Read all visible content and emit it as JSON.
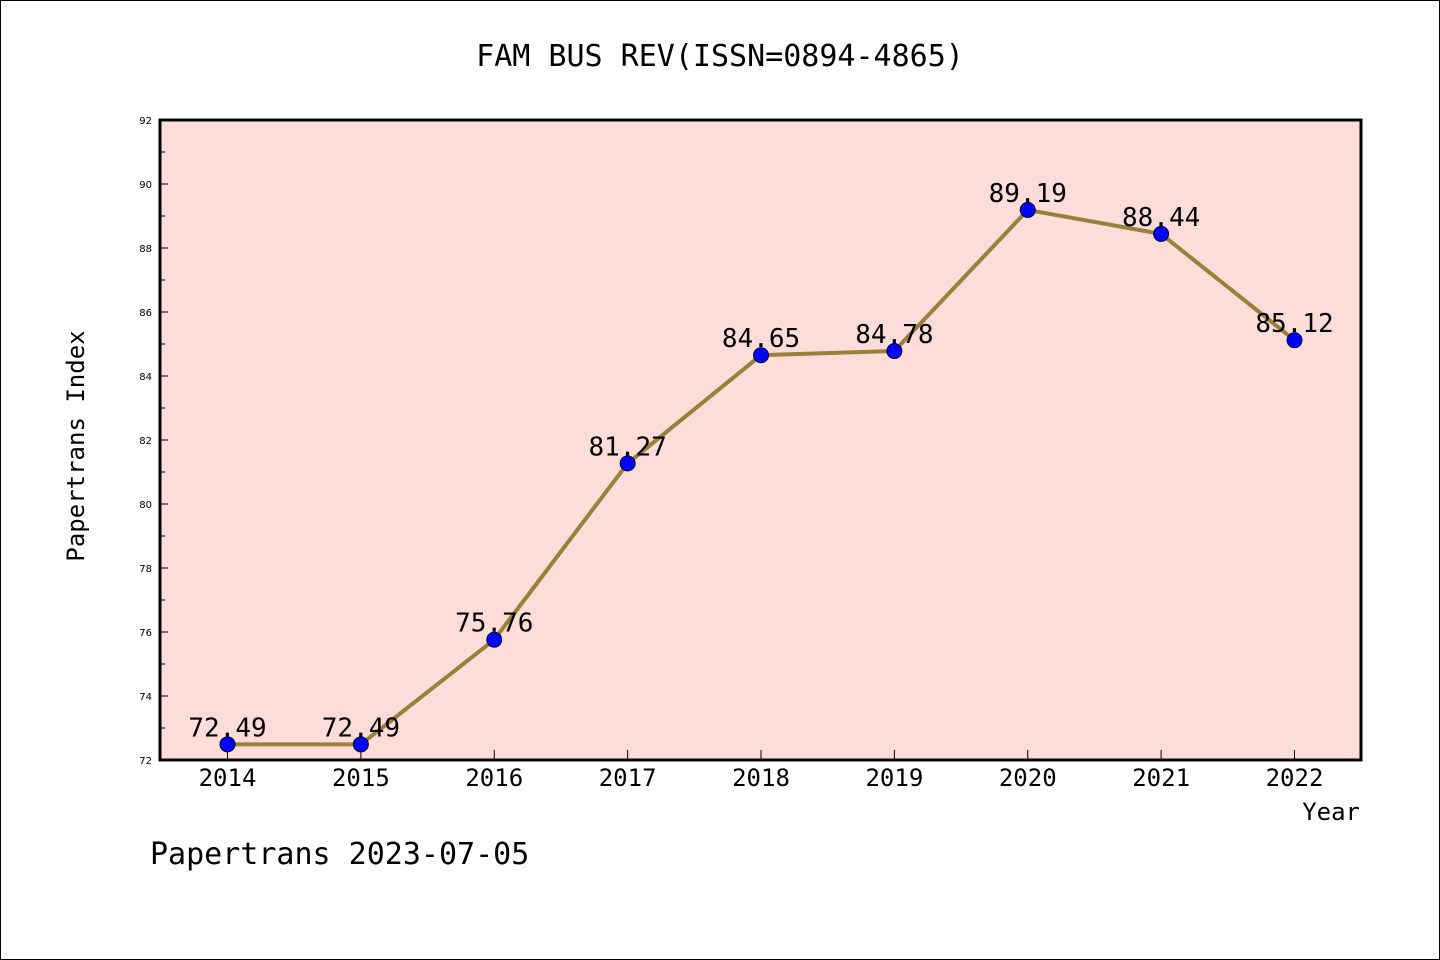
{
  "colors": {
    "plot_background": "#fddcd9",
    "line": "#9a8039",
    "marker": "#0000ff",
    "axis": "#000000"
  },
  "footer": "Papertrans 2023-07-05",
  "chart_data": {
    "type": "line",
    "title": "FAM BUS REV(ISSN=0894-4865)",
    "xlabel": "Year",
    "ylabel": "Papertrans Index",
    "categories": [
      "2014",
      "2015",
      "2016",
      "2017",
      "2018",
      "2019",
      "2020",
      "2021",
      "2022"
    ],
    "series": [
      {
        "values": [
          72.49,
          72.49,
          75.76,
          81.27,
          84.65,
          84.78,
          89.19,
          88.44,
          85.12
        ],
        "labels": [
          "72.49",
          "72.49",
          "75.76",
          "81.27",
          "84.65",
          "84.78",
          "89.19",
          "88.44",
          "85.12"
        ]
      }
    ],
    "ylim": [
      72,
      92
    ],
    "yticks": [
      72,
      74,
      76,
      78,
      80,
      82,
      84,
      86,
      88,
      90,
      92
    ],
    "grid": false,
    "legend": "none"
  }
}
